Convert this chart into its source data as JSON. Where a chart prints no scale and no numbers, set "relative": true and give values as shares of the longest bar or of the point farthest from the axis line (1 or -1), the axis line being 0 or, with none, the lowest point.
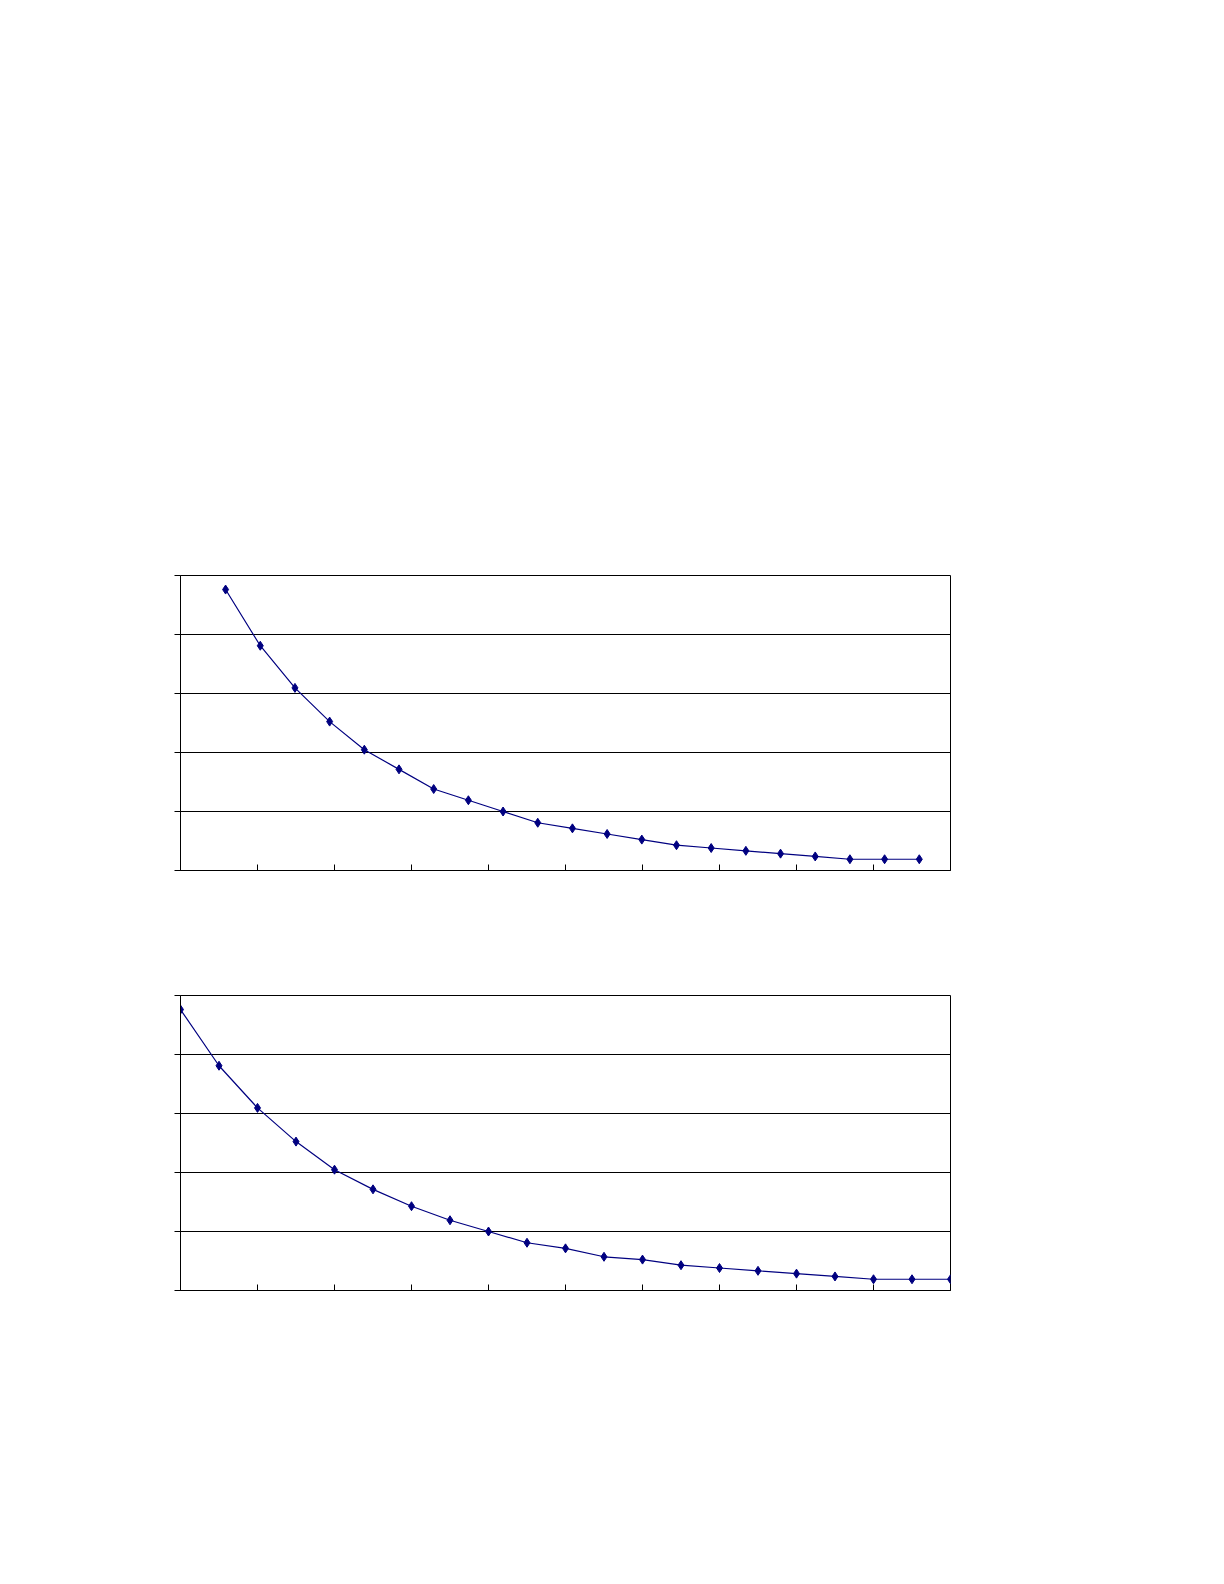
{
  "chart_data": [
    {
      "type": "line",
      "relative": true,
      "categories": [
        null,
        null,
        null,
        null,
        null,
        null,
        null,
        null,
        null,
        null,
        null,
        null,
        null,
        null,
        null,
        null,
        null,
        null,
        null,
        null,
        null
      ],
      "series": [
        {
          "color": "#000080",
          "values": [
            1,
            0.8,
            0.65,
            0.53,
            0.43,
            0.36,
            0.29,
            0.25,
            0.21,
            0.17,
            0.15,
            0.13,
            0.11,
            0.09,
            0.08,
            0.07,
            0.06,
            0.05,
            0.04,
            0.04,
            0.04
          ]
        }
      ],
      "marker": "diamond",
      "line_style": "solid",
      "grid": true
    },
    {
      "type": "line",
      "relative": true,
      "categories": [
        null,
        null,
        null,
        null,
        null,
        null,
        null,
        null,
        null,
        null,
        null,
        null,
        null,
        null,
        null,
        null,
        null,
        null,
        null,
        null,
        null
      ],
      "series": [
        {
          "color": "#000080",
          "values": [
            1,
            0.8,
            0.65,
            0.53,
            0.43,
            0.36,
            0.3,
            0.25,
            0.21,
            0.17,
            0.15,
            0.12,
            0.11,
            0.09,
            0.08,
            0.07,
            0.06,
            0.05,
            0.04,
            0.04,
            0.04
          ]
        }
      ],
      "marker": "diamond",
      "line_style": "solid",
      "grid": true
    }
  ]
}
